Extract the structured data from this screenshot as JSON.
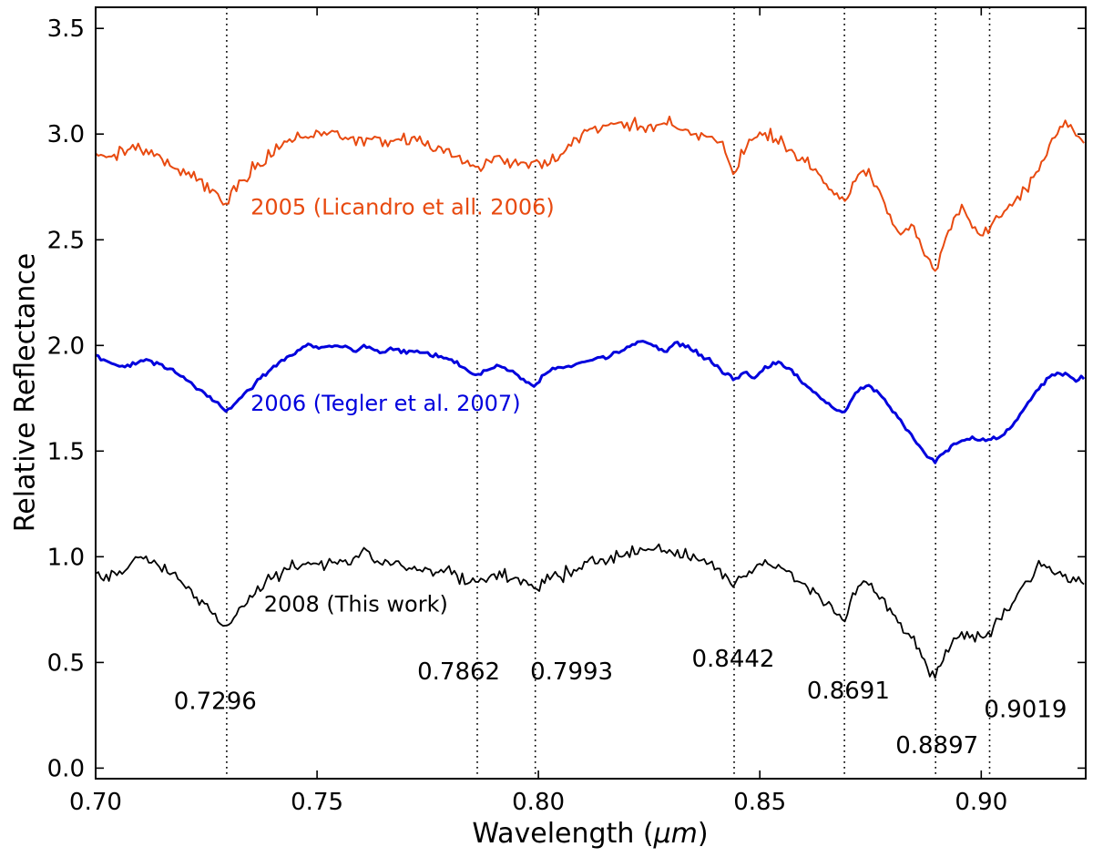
{
  "colors": {
    "background": "#ffffff",
    "axis": "#000000",
    "spectrum_2005": "#e84a10",
    "spectrum_2006": "#0000dd",
    "spectrum_2008": "#000000"
  },
  "chart_data": {
    "type": "line",
    "title": "",
    "xlabel": "Wavelength (μm)",
    "xlabel_parts": {
      "prefix": "Wavelength (",
      "unit": "μm",
      "suffix": ")"
    },
    "ylabel": "Relative Reflectance",
    "xlim": [
      0.7,
      0.9236
    ],
    "ylim": [
      -0.05,
      3.6
    ],
    "grid": false,
    "legend_position": "inline-labels",
    "x_ticks": [
      0.7,
      0.75,
      0.8,
      0.85,
      0.9
    ],
    "x_tick_labels": [
      "0.70",
      "0.75",
      "0.80",
      "0.85",
      "0.90"
    ],
    "y_ticks": [
      0.0,
      0.5,
      1.0,
      1.5,
      2.0,
      2.5,
      3.0,
      3.5
    ],
    "y_tick_labels": [
      "0.0",
      "0.5",
      "1.0",
      "1.5",
      "2.0",
      "2.5",
      "3.0",
      "3.5"
    ],
    "band_lines": {
      "color": "#000000",
      "style": "dotted",
      "wavelengths": [
        0.7296,
        0.7862,
        0.7993,
        0.8442,
        0.8691,
        0.8897,
        0.9019
      ]
    },
    "band_labels": [
      {
        "text": "0.7296",
        "x": 0.727,
        "y": 0.28
      },
      {
        "text": "0.7862",
        "x": 0.782,
        "y": 0.42
      },
      {
        "text": "0.7993",
        "x": 0.8075,
        "y": 0.42
      },
      {
        "text": "0.8442",
        "x": 0.844,
        "y": 0.48
      },
      {
        "text": "0.8691",
        "x": 0.87,
        "y": 0.33
      },
      {
        "text": "0.8897",
        "x": 0.89,
        "y": 0.07
      },
      {
        "text": "0.9019",
        "x": 0.91,
        "y": 0.24
      }
    ],
    "series": [
      {
        "id": "2005",
        "name": "2005 (Licandro et all. 2006)",
        "color": "#e84a10",
        "linewidth": 2.0,
        "noise": 0.03,
        "label_x": 0.735,
        "label_y": 2.62,
        "points": [
          [
            0.7,
            2.92
          ],
          [
            0.7025,
            2.89
          ],
          [
            0.705,
            2.91
          ],
          [
            0.7075,
            2.93
          ],
          [
            0.71,
            2.94
          ],
          [
            0.7125,
            2.92
          ],
          [
            0.715,
            2.89
          ],
          [
            0.7175,
            2.85
          ],
          [
            0.72,
            2.82
          ],
          [
            0.7235,
            2.78
          ],
          [
            0.7265,
            2.74
          ],
          [
            0.7296,
            2.67
          ],
          [
            0.732,
            2.75
          ],
          [
            0.735,
            2.82
          ],
          [
            0.738,
            2.88
          ],
          [
            0.741,
            2.93
          ],
          [
            0.7445,
            2.97
          ],
          [
            0.748,
            3.0
          ],
          [
            0.751,
            2.99
          ],
          [
            0.754,
            3.0
          ],
          [
            0.757,
            2.99
          ],
          [
            0.76,
            2.97
          ],
          [
            0.763,
            2.99
          ],
          [
            0.766,
            2.96
          ],
          [
            0.769,
            2.98
          ],
          [
            0.772,
            2.96
          ],
          [
            0.775,
            2.95
          ],
          [
            0.778,
            2.93
          ],
          [
            0.781,
            2.9
          ],
          [
            0.7835,
            2.87
          ],
          [
            0.7862,
            2.84
          ],
          [
            0.7885,
            2.87
          ],
          [
            0.791,
            2.89
          ],
          [
            0.7935,
            2.87
          ],
          [
            0.796,
            2.86
          ],
          [
            0.7993,
            2.85
          ],
          [
            0.8015,
            2.87
          ],
          [
            0.804,
            2.89
          ],
          [
            0.807,
            2.93
          ],
          [
            0.81,
            3.0
          ],
          [
            0.813,
            3.03
          ],
          [
            0.816,
            3.04
          ],
          [
            0.819,
            3.05
          ],
          [
            0.822,
            3.04
          ],
          [
            0.825,
            3.03
          ],
          [
            0.828,
            3.05
          ],
          [
            0.831,
            3.06
          ],
          [
            0.834,
            3.01
          ],
          [
            0.837,
            2.99
          ],
          [
            0.84,
            2.97
          ],
          [
            0.842,
            2.93
          ],
          [
            0.8442,
            2.79
          ],
          [
            0.846,
            2.93
          ],
          [
            0.849,
            2.98
          ],
          [
            0.8515,
            3.0
          ],
          [
            0.854,
            2.97
          ],
          [
            0.857,
            2.92
          ],
          [
            0.86,
            2.87
          ],
          [
            0.863,
            2.81
          ],
          [
            0.866,
            2.74
          ],
          [
            0.8691,
            2.68
          ],
          [
            0.8715,
            2.78
          ],
          [
            0.874,
            2.82
          ],
          [
            0.8765,
            2.76
          ],
          [
            0.879,
            2.62
          ],
          [
            0.8815,
            2.52
          ],
          [
            0.884,
            2.58
          ],
          [
            0.886,
            2.5
          ],
          [
            0.888,
            2.42
          ],
          [
            0.8897,
            2.33
          ],
          [
            0.8915,
            2.48
          ],
          [
            0.8935,
            2.58
          ],
          [
            0.8955,
            2.64
          ],
          [
            0.8975,
            2.58
          ],
          [
            0.8995,
            2.52
          ],
          [
            0.9019,
            2.56
          ],
          [
            0.904,
            2.62
          ],
          [
            0.9065,
            2.66
          ],
          [
            0.909,
            2.71
          ],
          [
            0.9115,
            2.78
          ],
          [
            0.914,
            2.88
          ],
          [
            0.9165,
            2.97
          ],
          [
            0.919,
            3.06
          ],
          [
            0.921,
            3.02
          ],
          [
            0.9236,
            2.96
          ]
        ]
      },
      {
        "id": "2006",
        "name": "2006 (Tegler et al. 2007)",
        "color": "#0000dd",
        "linewidth": 3.0,
        "noise": 0.01,
        "label_x": 0.735,
        "label_y": 1.69,
        "points": [
          [
            0.7,
            1.95
          ],
          [
            0.7025,
            1.92
          ],
          [
            0.705,
            1.9
          ],
          [
            0.708,
            1.91
          ],
          [
            0.711,
            1.93
          ],
          [
            0.714,
            1.91
          ],
          [
            0.717,
            1.88
          ],
          [
            0.72,
            1.85
          ],
          [
            0.7235,
            1.79
          ],
          [
            0.7265,
            1.74
          ],
          [
            0.7296,
            1.69
          ],
          [
            0.732,
            1.74
          ],
          [
            0.735,
            1.8
          ],
          [
            0.738,
            1.86
          ],
          [
            0.741,
            1.91
          ],
          [
            0.7445,
            1.96
          ],
          [
            0.748,
            2.01
          ],
          [
            0.7505,
            1.99
          ],
          [
            0.753,
            2.0
          ],
          [
            0.756,
            2.0
          ],
          [
            0.759,
            1.97
          ],
          [
            0.7615,
            2.0
          ],
          [
            0.764,
            1.96
          ],
          [
            0.767,
            1.99
          ],
          [
            0.77,
            1.97
          ],
          [
            0.7735,
            1.97
          ],
          [
            0.777,
            1.95
          ],
          [
            0.78,
            1.93
          ],
          [
            0.7835,
            1.89
          ],
          [
            0.7862,
            1.86
          ],
          [
            0.7885,
            1.88
          ],
          [
            0.791,
            1.91
          ],
          [
            0.7935,
            1.88
          ],
          [
            0.796,
            1.85
          ],
          [
            0.7993,
            1.81
          ],
          [
            0.8015,
            1.87
          ],
          [
            0.804,
            1.89
          ],
          [
            0.807,
            1.9
          ],
          [
            0.81,
            1.92
          ],
          [
            0.8135,
            1.94
          ],
          [
            0.817,
            1.96
          ],
          [
            0.82,
            1.99
          ],
          [
            0.8235,
            2.02
          ],
          [
            0.826,
            2.0
          ],
          [
            0.8285,
            1.97
          ],
          [
            0.831,
            2.01
          ],
          [
            0.834,
            1.99
          ],
          [
            0.837,
            1.95
          ],
          [
            0.84,
            1.91
          ],
          [
            0.842,
            1.87
          ],
          [
            0.8442,
            1.84
          ],
          [
            0.8465,
            1.87
          ],
          [
            0.849,
            1.85
          ],
          [
            0.8515,
            1.9
          ],
          [
            0.854,
            1.92
          ],
          [
            0.857,
            1.89
          ],
          [
            0.86,
            1.82
          ],
          [
            0.863,
            1.76
          ],
          [
            0.866,
            1.71
          ],
          [
            0.8691,
            1.68
          ],
          [
            0.8715,
            1.77
          ],
          [
            0.874,
            1.81
          ],
          [
            0.8765,
            1.78
          ],
          [
            0.879,
            1.72
          ],
          [
            0.882,
            1.64
          ],
          [
            0.885,
            1.55
          ],
          [
            0.8875,
            1.48
          ],
          [
            0.8897,
            1.45
          ],
          [
            0.892,
            1.5
          ],
          [
            0.8945,
            1.54
          ],
          [
            0.897,
            1.56
          ],
          [
            0.8995,
            1.55
          ],
          [
            0.9019,
            1.55
          ],
          [
            0.9045,
            1.57
          ],
          [
            0.907,
            1.62
          ],
          [
            0.91,
            1.71
          ],
          [
            0.913,
            1.8
          ],
          [
            0.916,
            1.86
          ],
          [
            0.919,
            1.87
          ],
          [
            0.9215,
            1.84
          ],
          [
            0.9236,
            1.85
          ]
        ]
      },
      {
        "id": "2008",
        "name": "2008 (This work)",
        "color": "#000000",
        "linewidth": 1.8,
        "noise": 0.028,
        "label_x": 0.738,
        "label_y": 0.74,
        "points": [
          [
            0.7,
            0.93
          ],
          [
            0.702,
            0.89
          ],
          [
            0.7045,
            0.91
          ],
          [
            0.707,
            0.94
          ],
          [
            0.7095,
            0.99
          ],
          [
            0.7115,
            1.0
          ],
          [
            0.714,
            0.96
          ],
          [
            0.717,
            0.92
          ],
          [
            0.72,
            0.87
          ],
          [
            0.7235,
            0.8
          ],
          [
            0.7265,
            0.73
          ],
          [
            0.7296,
            0.67
          ],
          [
            0.732,
            0.73
          ],
          [
            0.735,
            0.8
          ],
          [
            0.738,
            0.87
          ],
          [
            0.7415,
            0.92
          ],
          [
            0.745,
            0.96
          ],
          [
            0.7485,
            0.97
          ],
          [
            0.752,
            0.96
          ],
          [
            0.7555,
            0.97
          ],
          [
            0.759,
            0.99
          ],
          [
            0.7605,
            1.06
          ],
          [
            0.7625,
            0.99
          ],
          [
            0.766,
            0.97
          ],
          [
            0.7695,
            0.95
          ],
          [
            0.773,
            0.94
          ],
          [
            0.7765,
            0.93
          ],
          [
            0.78,
            0.92
          ],
          [
            0.7835,
            0.9
          ],
          [
            0.7862,
            0.88
          ],
          [
            0.789,
            0.91
          ],
          [
            0.792,
            0.92
          ],
          [
            0.795,
            0.9
          ],
          [
            0.797,
            0.87
          ],
          [
            0.7993,
            0.84
          ],
          [
            0.8015,
            0.88
          ],
          [
            0.804,
            0.91
          ],
          [
            0.8075,
            0.93
          ],
          [
            0.811,
            0.96
          ],
          [
            0.8145,
            0.98
          ],
          [
            0.818,
            1.0
          ],
          [
            0.8215,
            1.02
          ],
          [
            0.825,
            1.04
          ],
          [
            0.8285,
            1.02
          ],
          [
            0.832,
            1.01
          ],
          [
            0.8355,
            1.0
          ],
          [
            0.839,
            0.96
          ],
          [
            0.8415,
            0.92
          ],
          [
            0.8442,
            0.87
          ],
          [
            0.8465,
            0.91
          ],
          [
            0.849,
            0.95
          ],
          [
            0.8515,
            0.97
          ],
          [
            0.854,
            0.95
          ],
          [
            0.857,
            0.91
          ],
          [
            0.86,
            0.86
          ],
          [
            0.863,
            0.81
          ],
          [
            0.866,
            0.76
          ],
          [
            0.8691,
            0.71
          ],
          [
            0.871,
            0.82
          ],
          [
            0.8735,
            0.88
          ],
          [
            0.876,
            0.83
          ],
          [
            0.879,
            0.76
          ],
          [
            0.883,
            0.66
          ],
          [
            0.886,
            0.55
          ],
          [
            0.8885,
            0.46
          ],
          [
            0.8897,
            0.43
          ],
          [
            0.891,
            0.5
          ],
          [
            0.8935,
            0.6
          ],
          [
            0.896,
            0.63
          ],
          [
            0.899,
            0.62
          ],
          [
            0.9019,
            0.64
          ],
          [
            0.904,
            0.7
          ],
          [
            0.907,
            0.78
          ],
          [
            0.91,
            0.88
          ],
          [
            0.9135,
            0.96
          ],
          [
            0.916,
            0.93
          ],
          [
            0.919,
            0.9
          ],
          [
            0.9236,
            0.89
          ]
        ]
      }
    ]
  }
}
